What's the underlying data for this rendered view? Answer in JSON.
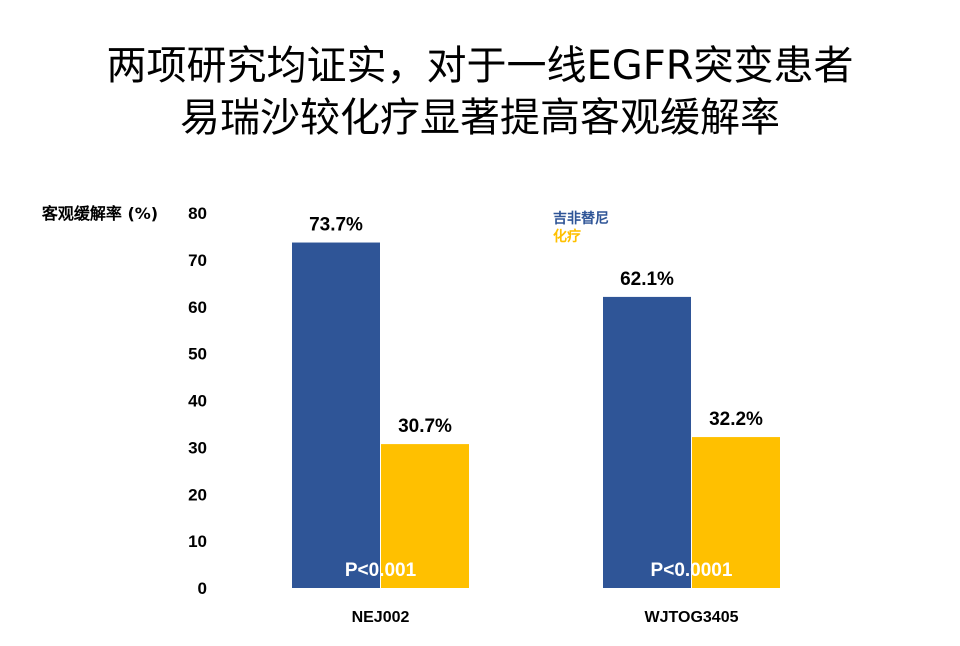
{
  "title_lines": [
    "两项研究均证实，对于一线EGFR突变患者",
    "易瑞沙较化疗显著提高客观缓解率"
  ],
  "colors": {
    "gefitinib": "#2F5597",
    "chemo": "#FFC000"
  },
  "chart_data": {
    "type": "bar",
    "ylabel": "客观缓解率 (%)",
    "ylim": [
      0,
      80
    ],
    "yticks": [
      0,
      10,
      20,
      30,
      40,
      50,
      60,
      70,
      80
    ],
    "categories": [
      "NEJ002",
      "WJTOG3405"
    ],
    "series": [
      {
        "name": "吉非替尼",
        "values": [
          73.7,
          62.1
        ],
        "labels": [
          "73.7%",
          "62.1%"
        ]
      },
      {
        "name": "化疗",
        "values": [
          30.7,
          32.2
        ],
        "labels": [
          "30.7%",
          "32.2%"
        ]
      }
    ],
    "annotations": [
      "P<0.001",
      "P<0.0001"
    ],
    "legend_position": "top-right",
    "grid": false
  }
}
